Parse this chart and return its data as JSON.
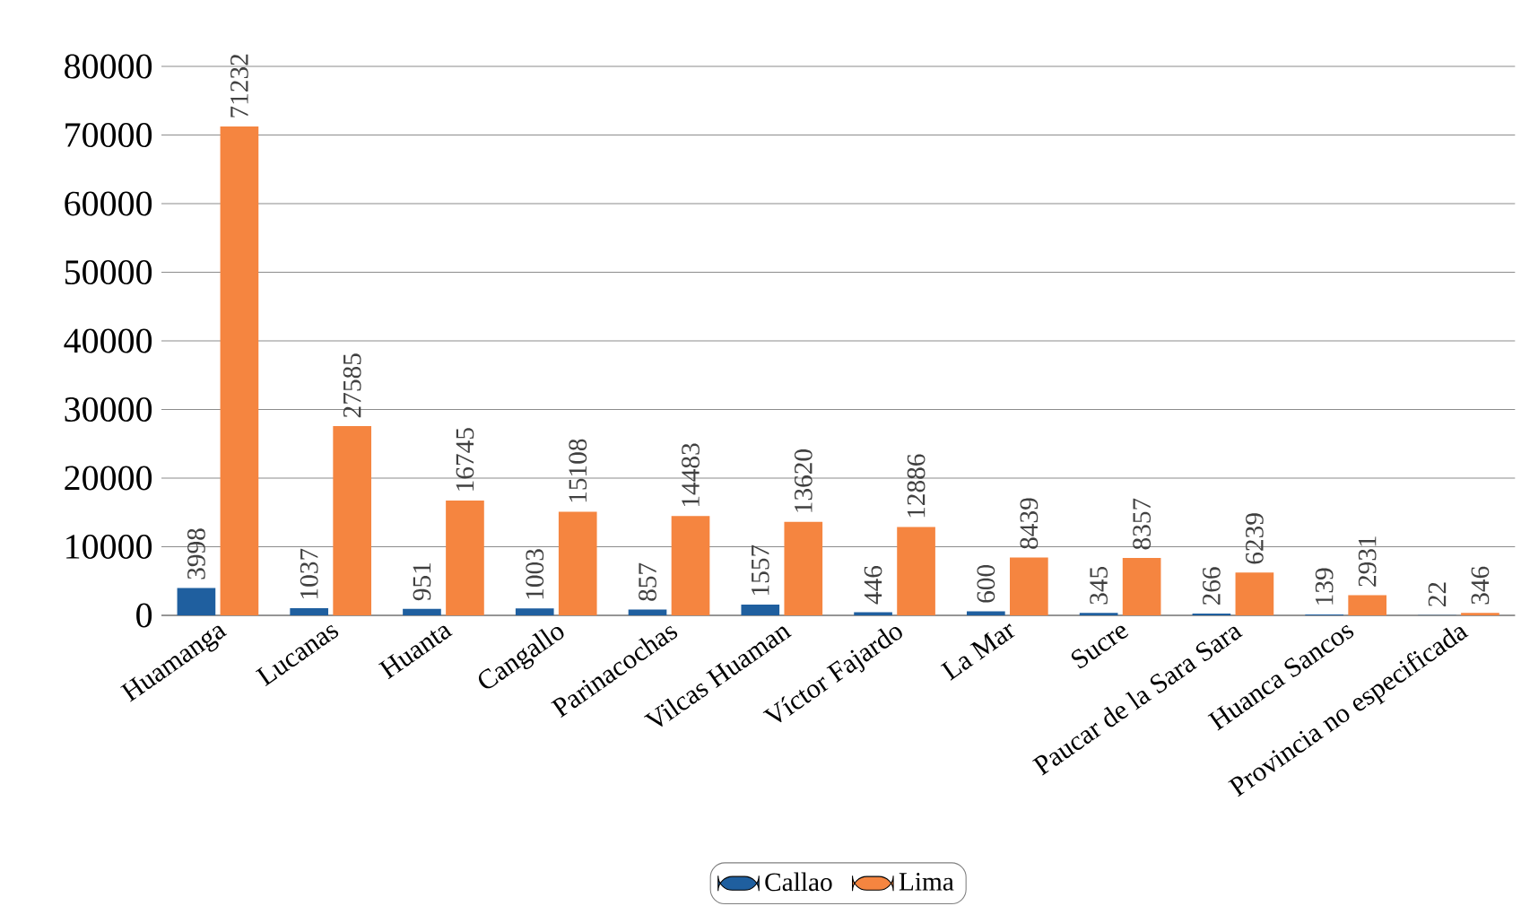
{
  "chart_data": {
    "type": "bar",
    "categories": [
      "Huamanga",
      "Lucanas",
      "Huanta",
      "Cangallo",
      "Parinacochas",
      "Vilcas Huaman",
      "Víctor Fajardo",
      "La Mar",
      "Sucre",
      "Paucar de la Sara Sara",
      "Huanca Sancos",
      "Provincia no especificada"
    ],
    "series": [
      {
        "name": "Callao",
        "color": "#1f5f9f",
        "values": [
          3998,
          1037,
          951,
          1003,
          857,
          1557,
          446,
          600,
          345,
          266,
          139,
          22
        ]
      },
      {
        "name": "Lima",
        "color": "#f58540",
        "values": [
          71232,
          27585,
          16745,
          15108,
          14483,
          13620,
          12886,
          8439,
          8357,
          6239,
          2931,
          346
        ]
      }
    ],
    "ylim": [
      0,
      80000
    ],
    "yticks": [
      0,
      10000,
      20000,
      30000,
      40000,
      50000,
      60000,
      70000,
      80000
    ],
    "grid": "y",
    "legend": "bottom",
    "data_labels": true
  }
}
